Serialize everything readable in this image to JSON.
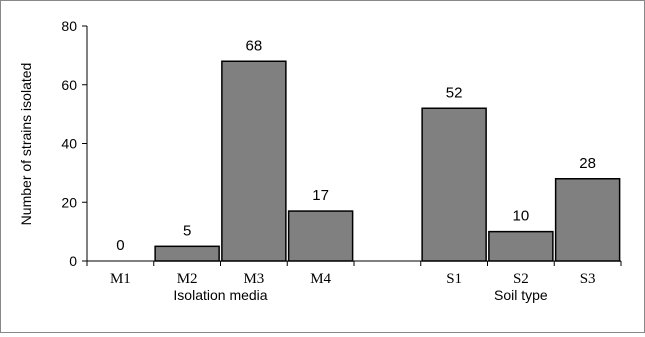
{
  "chart_data": {
    "type": "bar",
    "title": "",
    "ylabel": "Number of strains isolated",
    "ylim": [
      0,
      80
    ],
    "yticks": [
      0,
      20,
      40,
      60,
      80
    ],
    "grid": false,
    "bar_color": "#808080",
    "groups": [
      {
        "label": "Isolation media",
        "categories": [
          "M1",
          "M2",
          "M3",
          "M4"
        ],
        "values": [
          0,
          5,
          68,
          17
        ],
        "value_labels": [
          "0",
          "5",
          "68",
          "17"
        ]
      },
      {
        "label": "Soil type",
        "categories": [
          "S1",
          "S2",
          "S3"
        ],
        "values": [
          52,
          10,
          28
        ],
        "value_labels": [
          "52",
          "10",
          "28"
        ]
      }
    ]
  }
}
